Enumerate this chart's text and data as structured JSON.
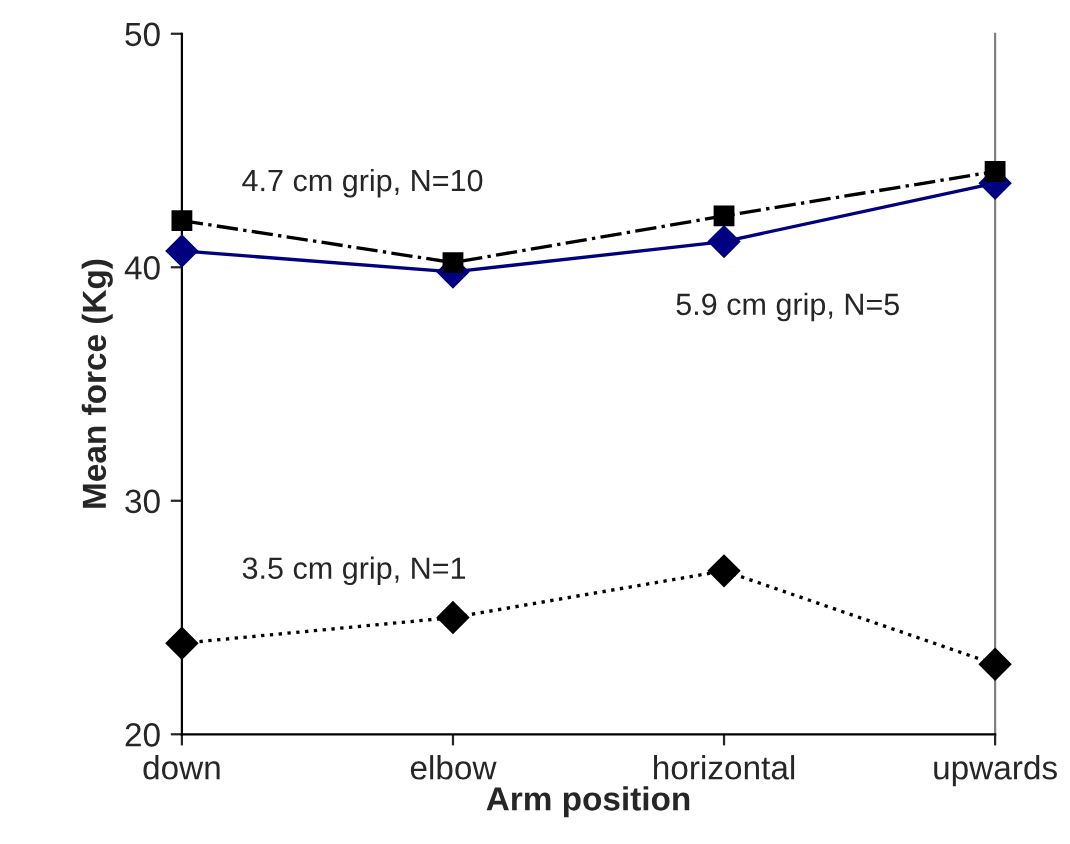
{
  "chart_data": {
    "type": "line",
    "xlabel": "Arm position",
    "ylabel": "Mean force (Kg)",
    "categories": [
      "down",
      "elbow",
      "horizontal",
      "upwards"
    ],
    "ylim": [
      20,
      50
    ],
    "yticks": [
      20,
      30,
      40,
      50
    ],
    "grid": false,
    "legend": false,
    "series": [
      {
        "name": "4.7 cm grip, N=10",
        "color": "#000000",
        "marker": "square",
        "line_style": "dashdot",
        "values": [
          42.0,
          40.2,
          42.2,
          44.1
        ]
      },
      {
        "name": "5.9 cm grip, N=5",
        "color": "#000080",
        "marker": "diamond",
        "line_style": "solid",
        "values": [
          40.7,
          39.8,
          41.1,
          43.6
        ]
      },
      {
        "name": "3.5 cm grip, N=1",
        "color": "#000000",
        "marker": "diamond",
        "line_style": "dotted",
        "values": [
          23.9,
          25.0,
          27.0,
          23.0
        ]
      }
    ]
  }
}
